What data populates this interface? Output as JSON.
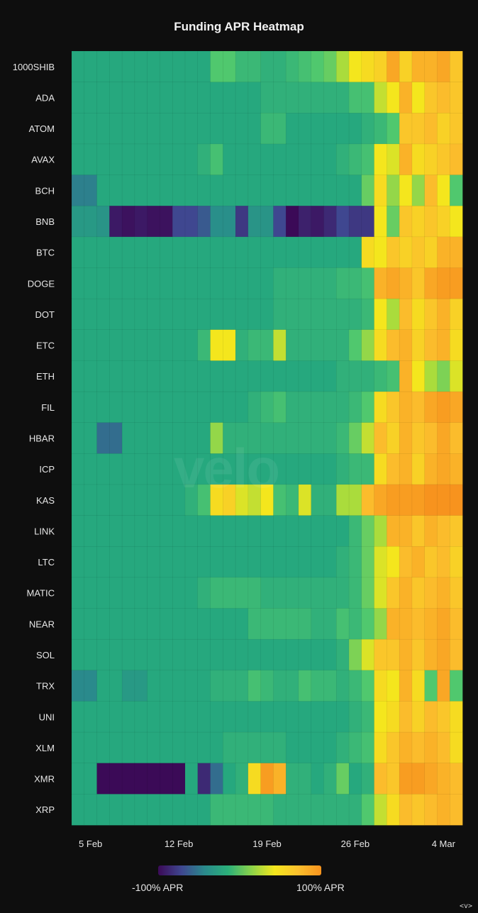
{
  "chart_data": {
    "type": "heatmap",
    "title": "Funding APR Heatmap",
    "rows": [
      "1000SHIB",
      "ADA",
      "ATOM",
      "AVAX",
      "BCH",
      "BNB",
      "BTC",
      "DOGE",
      "DOT",
      "ETC",
      "ETH",
      "FIL",
      "HBAR",
      "ICP",
      "KAS",
      "LINK",
      "LTC",
      "MATIC",
      "NEAR",
      "SOL",
      "TRX",
      "UNI",
      "XLM",
      "XMR",
      "XRP"
    ],
    "x_ticks": [
      "5 Feb",
      "12 Feb",
      "19 Feb",
      "26 Feb",
      "4 Mar"
    ],
    "x_tick_columns": [
      1.5,
      8.5,
      15.5,
      22.5,
      29.5
    ],
    "num_columns": 31,
    "value_range": [
      -100,
      100
    ],
    "legend": {
      "min_label": "-100% APR",
      "max_label": "100% APR"
    },
    "colors": {
      "low": "#3b0a57",
      "mid": "#2bb07a",
      "high": "#f7931e"
    },
    "values": [
      [
        5,
        5,
        5,
        5,
        5,
        5,
        5,
        5,
        5,
        5,
        5,
        25,
        25,
        15,
        15,
        10,
        10,
        15,
        20,
        25,
        30,
        45,
        60,
        65,
        70,
        90,
        70,
        85,
        85,
        90,
        75
      ],
      [
        5,
        5,
        5,
        5,
        5,
        5,
        5,
        5,
        5,
        5,
        5,
        5,
        5,
        5,
        5,
        10,
        10,
        10,
        10,
        10,
        10,
        10,
        20,
        20,
        50,
        60,
        85,
        60,
        75,
        80,
        75
      ],
      [
        5,
        5,
        5,
        5,
        5,
        5,
        5,
        5,
        5,
        5,
        5,
        5,
        5,
        5,
        5,
        15,
        15,
        5,
        5,
        5,
        5,
        5,
        5,
        10,
        15,
        25,
        75,
        75,
        80,
        70,
        75
      ],
      [
        5,
        5,
        5,
        5,
        5,
        5,
        5,
        5,
        5,
        5,
        10,
        20,
        5,
        5,
        5,
        5,
        5,
        5,
        5,
        5,
        5,
        10,
        15,
        20,
        60,
        55,
        85,
        65,
        70,
        75,
        80
      ],
      [
        -30,
        -30,
        5,
        5,
        5,
        5,
        5,
        5,
        5,
        5,
        5,
        5,
        5,
        5,
        5,
        5,
        5,
        5,
        5,
        5,
        5,
        5,
        5,
        30,
        65,
        40,
        60,
        40,
        80,
        60,
        25
      ],
      [
        -10,
        -10,
        -15,
        -90,
        -95,
        -90,
        -95,
        -95,
        -60,
        -60,
        -50,
        -20,
        -20,
        -70,
        -15,
        -15,
        -60,
        -100,
        -85,
        -90,
        -80,
        -60,
        -70,
        -70,
        60,
        30,
        75,
        70,
        75,
        70,
        60
      ],
      [
        5,
        5,
        5,
        5,
        5,
        5,
        5,
        5,
        5,
        5,
        5,
        5,
        5,
        5,
        5,
        5,
        5,
        5,
        5,
        5,
        5,
        5,
        5,
        65,
        60,
        75,
        70,
        75,
        70,
        85,
        85
      ],
      [
        5,
        5,
        5,
        5,
        5,
        5,
        5,
        5,
        5,
        5,
        5,
        5,
        5,
        5,
        5,
        5,
        10,
        10,
        10,
        10,
        10,
        15,
        15,
        20,
        85,
        90,
        85,
        75,
        90,
        95,
        95
      ],
      [
        5,
        5,
        5,
        5,
        5,
        5,
        5,
        5,
        5,
        5,
        5,
        5,
        5,
        5,
        5,
        5,
        10,
        10,
        10,
        10,
        10,
        10,
        10,
        15,
        60,
        45,
        80,
        65,
        75,
        85,
        70
      ],
      [
        5,
        5,
        5,
        5,
        5,
        5,
        5,
        5,
        5,
        5,
        15,
        60,
        60,
        10,
        15,
        15,
        50,
        10,
        10,
        10,
        10,
        10,
        25,
        40,
        65,
        80,
        85,
        70,
        80,
        85,
        65
      ],
      [
        5,
        5,
        5,
        5,
        5,
        5,
        5,
        5,
        5,
        5,
        5,
        5,
        5,
        5,
        5,
        5,
        5,
        5,
        5,
        5,
        5,
        10,
        10,
        10,
        15,
        20,
        85,
        60,
        45,
        35,
        55
      ],
      [
        5,
        5,
        5,
        5,
        5,
        5,
        5,
        5,
        5,
        5,
        5,
        5,
        5,
        5,
        10,
        15,
        20,
        10,
        10,
        10,
        10,
        10,
        15,
        25,
        65,
        75,
        85,
        80,
        90,
        95,
        90
      ],
      [
        5,
        5,
        -40,
        -40,
        5,
        5,
        5,
        5,
        5,
        5,
        5,
        40,
        10,
        10,
        10,
        10,
        10,
        10,
        10,
        10,
        10,
        15,
        30,
        50,
        80,
        70,
        85,
        75,
        80,
        90,
        80
      ],
      [
        5,
        5,
        5,
        5,
        5,
        5,
        5,
        5,
        5,
        5,
        5,
        5,
        5,
        5,
        5,
        5,
        5,
        5,
        5,
        5,
        5,
        10,
        15,
        15,
        65,
        80,
        85,
        70,
        85,
        90,
        85
      ],
      [
        5,
        5,
        5,
        5,
        5,
        5,
        5,
        5,
        5,
        10,
        20,
        65,
        70,
        55,
        50,
        60,
        20,
        15,
        55,
        10,
        10,
        45,
        45,
        80,
        90,
        95,
        95,
        95,
        100,
        100,
        100
      ],
      [
        5,
        5,
        5,
        5,
        5,
        5,
        5,
        5,
        5,
        5,
        5,
        5,
        5,
        5,
        5,
        5,
        5,
        5,
        5,
        5,
        5,
        5,
        15,
        30,
        45,
        85,
        85,
        75,
        85,
        80,
        75
      ],
      [
        5,
        5,
        5,
        5,
        5,
        5,
        5,
        5,
        5,
        5,
        5,
        5,
        5,
        5,
        5,
        5,
        5,
        5,
        5,
        5,
        5,
        10,
        15,
        30,
        55,
        60,
        80,
        85,
        75,
        80,
        70
      ],
      [
        5,
        5,
        5,
        5,
        5,
        5,
        5,
        5,
        5,
        5,
        10,
        15,
        15,
        15,
        15,
        10,
        10,
        10,
        10,
        10,
        10,
        10,
        15,
        30,
        55,
        75,
        85,
        75,
        80,
        85,
        75
      ],
      [
        5,
        5,
        5,
        5,
        5,
        5,
        5,
        5,
        5,
        5,
        5,
        5,
        5,
        5,
        15,
        15,
        15,
        15,
        15,
        10,
        10,
        20,
        15,
        25,
        40,
        85,
        85,
        80,
        85,
        90,
        80
      ],
      [
        5,
        5,
        5,
        5,
        5,
        5,
        5,
        5,
        5,
        5,
        5,
        5,
        5,
        5,
        5,
        5,
        5,
        5,
        5,
        5,
        5,
        10,
        35,
        55,
        75,
        75,
        85,
        75,
        85,
        90,
        80
      ],
      [
        -25,
        -25,
        5,
        5,
        -10,
        -10,
        5,
        5,
        5,
        5,
        5,
        10,
        10,
        10,
        20,
        15,
        10,
        10,
        20,
        15,
        15,
        10,
        15,
        25,
        65,
        60,
        85,
        65,
        25,
        90,
        25
      ],
      [
        5,
        5,
        5,
        5,
        5,
        5,
        5,
        5,
        5,
        5,
        5,
        5,
        5,
        5,
        5,
        5,
        5,
        5,
        5,
        5,
        5,
        5,
        10,
        15,
        60,
        65,
        80,
        70,
        80,
        75,
        65
      ],
      [
        5,
        5,
        5,
        5,
        5,
        5,
        5,
        5,
        5,
        5,
        5,
        5,
        10,
        10,
        10,
        10,
        10,
        5,
        5,
        5,
        5,
        10,
        15,
        20,
        65,
        75,
        85,
        80,
        85,
        80,
        65
      ],
      [
        5,
        5,
        -100,
        -100,
        -100,
        -100,
        -100,
        -100,
        -100,
        5,
        -80,
        -40,
        5,
        10,
        65,
        95,
        85,
        10,
        10,
        5,
        10,
        30,
        5,
        10,
        80,
        75,
        95,
        95,
        90,
        85,
        80
      ],
      [
        5,
        5,
        5,
        5,
        5,
        5,
        5,
        5,
        5,
        5,
        5,
        15,
        15,
        15,
        15,
        15,
        10,
        10,
        10,
        10,
        10,
        10,
        10,
        25,
        50,
        65,
        80,
        75,
        80,
        85,
        80
      ]
    ]
  }
}
